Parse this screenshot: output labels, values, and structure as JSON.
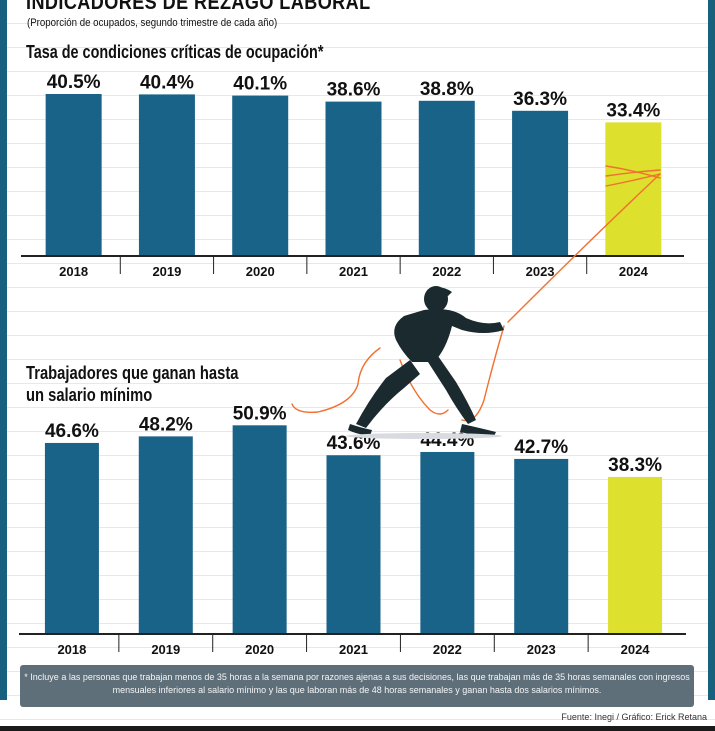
{
  "header": {
    "title": "INDICADORES DE REZAGO LABORAL",
    "subtitle": "(Proporción de ocupados, segundo trimestre de cada año)"
  },
  "colors": {
    "bar": "#1a6388",
    "highlight": "#dde02c",
    "axis": "#222222",
    "frame": "#17617f",
    "footnote_bg": "#5f6f7a",
    "rope": "#f2702f"
  },
  "chart_data": [
    {
      "type": "bar",
      "title": "Tasa de condiciones críticas de ocupación*",
      "xlabel": "",
      "ylabel": "",
      "categories": [
        "2018",
        "2019",
        "2020",
        "2021",
        "2022",
        "2023",
        "2024"
      ],
      "values": [
        40.5,
        40.4,
        40.1,
        38.6,
        38.8,
        36.3,
        33.4
      ],
      "labels": [
        "40.5%",
        "40.4%",
        "40.1%",
        "38.6%",
        "38.8%",
        "36.3%",
        "33.4%"
      ],
      "highlight_index": 6,
      "grid": true,
      "legend": "none"
    },
    {
      "type": "bar",
      "title": "Trabajadores que ganan hasta\nun salario mínimo",
      "xlabel": "",
      "ylabel": "",
      "categories": [
        "2018",
        "2019",
        "2020",
        "2021",
        "2022",
        "2023",
        "2024"
      ],
      "values": [
        46.6,
        48.2,
        50.9,
        43.6,
        44.4,
        42.7,
        38.3
      ],
      "labels": [
        "46.6%",
        "48.2%",
        "50.9%",
        "43.6%",
        "44.4%",
        "42.7%",
        "38.3%"
      ],
      "highlight_index": 6,
      "grid": true,
      "legend": "none"
    }
  ],
  "footer": {
    "note": "* Incluye a las personas que trabajan menos de 35 horas a la semana por razones ajenas a sus decisiones, las que trabajan más de 35 horas semanales con ingresos mensuales inferiores al salario mínimo y las que laboran más de 48 horas semanales y ganan hasta dos salarios mínimos.",
    "credit": "Fuente: Inegi / Gráfico: Erick Retana"
  },
  "illustration": {
    "icon": "man-pulling-rope-icon"
  }
}
